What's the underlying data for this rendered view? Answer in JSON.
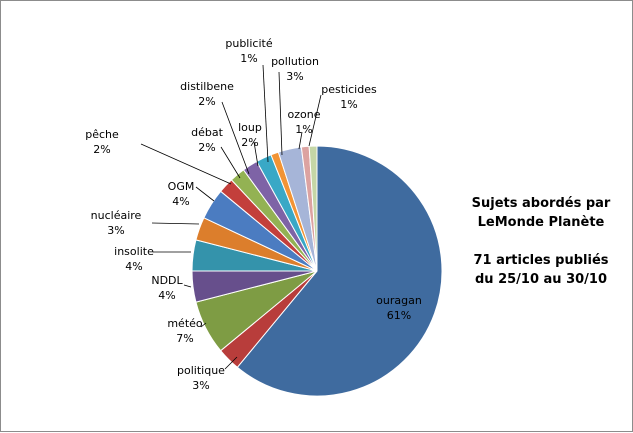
{
  "chart_data": {
    "type": "pie",
    "title": [
      "Sujets abordés par",
      "LeMonde Planète"
    ],
    "subtitle": [
      "71 articles publiés",
      "du 25/10 au 30/10"
    ],
    "slices": [
      {
        "label": "ouragan",
        "pct_label": "61%",
        "value": 61,
        "color": "#3F6B9F"
      },
      {
        "label": "politique",
        "pct_label": "3%",
        "value": 3,
        "color": "#B83D3B"
      },
      {
        "label": "météo",
        "pct_label": "7%",
        "value": 7,
        "color": "#7E9C44"
      },
      {
        "label": "NDDL",
        "pct_label": "4%",
        "value": 4,
        "color": "#674F8C"
      },
      {
        "label": "insolite",
        "pct_label": "4%",
        "value": 4,
        "color": "#3493AB"
      },
      {
        "label": "nucléaire",
        "pct_label": "3%",
        "value": 3,
        "color": "#DC7E2C"
      },
      {
        "label": "OGM",
        "pct_label": "4%",
        "value": 4,
        "color": "#4B7CC1"
      },
      {
        "label": "pêche",
        "pct_label": "2%",
        "value": 2,
        "color": "#C33F3B"
      },
      {
        "label": "débat",
        "pct_label": "2%",
        "value": 2,
        "color": "#93B253"
      },
      {
        "label": "distilbene",
        "pct_label": "2%",
        "value": 2,
        "color": "#7E63A6"
      },
      {
        "label": "loup",
        "pct_label": "2%",
        "value": 2,
        "color": "#39A8C6"
      },
      {
        "label": "publicité",
        "pct_label": "1%",
        "value": 1,
        "color": "#F29435"
      },
      {
        "label": "pollution",
        "pct_label": "3%",
        "value": 3,
        "color": "#A6B5D8"
      },
      {
        "label": "ozone",
        "pct_label": "1%",
        "value": 1,
        "color": "#DCA3A1"
      },
      {
        "label": "pesticides",
        "pct_label": "1%",
        "value": 1,
        "color": "#C5D6A6"
      }
    ],
    "legend": "none",
    "grid": false
  }
}
